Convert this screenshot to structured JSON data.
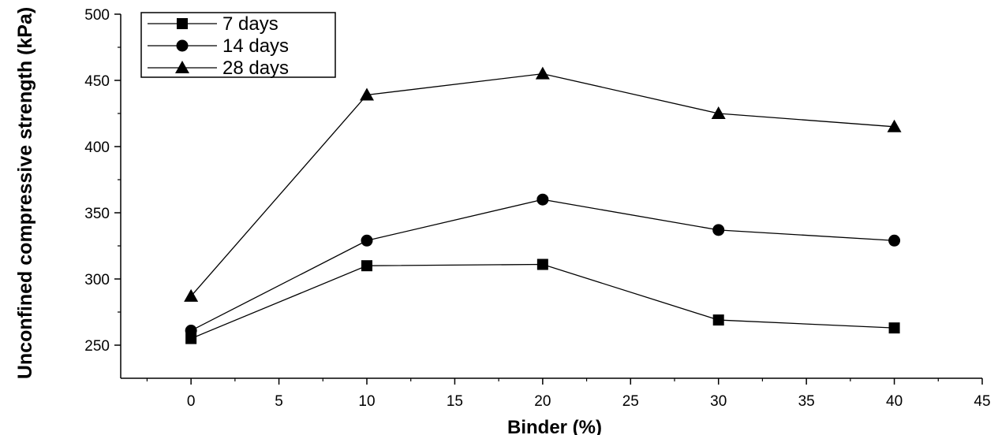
{
  "chart_data": {
    "type": "line",
    "xlabel": "Binder (%)",
    "ylabel": "Unconfined compressive strength (kPa)",
    "xlim": [
      -4,
      45
    ],
    "ylim": [
      225,
      500
    ],
    "xticks": [
      0,
      5,
      10,
      15,
      20,
      25,
      30,
      35,
      40,
      45
    ],
    "yticks": [
      250,
      300,
      350,
      400,
      450,
      500
    ],
    "x": [
      0,
      10,
      20,
      30,
      40
    ],
    "series": [
      {
        "name": "7 days",
        "marker": "square",
        "values": [
          255,
          310,
          311,
          269,
          263
        ]
      },
      {
        "name": "14 days",
        "marker": "circle",
        "values": [
          261,
          329,
          360,
          337,
          329
        ]
      },
      {
        "name": "28 days",
        "marker": "triangle",
        "values": [
          287,
          439,
          455,
          425,
          415
        ]
      }
    ],
    "legend_position": "top-left",
    "grid": false
  }
}
